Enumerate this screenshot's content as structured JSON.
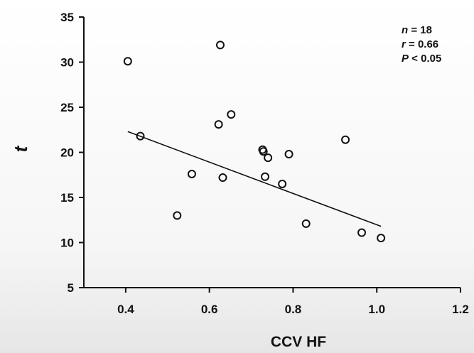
{
  "chart_data": {
    "type": "scatter",
    "xlabel": "CCV HF",
    "ylabel": "t",
    "xlim": [
      0.3,
      1.2
    ],
    "ylim": [
      5,
      35
    ],
    "xticks": [
      0.4,
      0.6,
      0.8,
      1.0,
      1.2
    ],
    "xtick_labels": [
      "0.4",
      "0.6",
      "0.8",
      "1.0",
      "1.2"
    ],
    "yticks": [
      5,
      10,
      15,
      20,
      25,
      30,
      35
    ],
    "ytick_labels": [
      "5",
      "10",
      "15",
      "20",
      "25",
      "30",
      "35"
    ],
    "grid": false,
    "points": [
      {
        "x": 0.405,
        "y": 30.1
      },
      {
        "x": 0.435,
        "y": 21.8
      },
      {
        "x": 0.523,
        "y": 13.0
      },
      {
        "x": 0.558,
        "y": 17.6
      },
      {
        "x": 0.622,
        "y": 23.1
      },
      {
        "x": 0.626,
        "y": 31.9
      },
      {
        "x": 0.632,
        "y": 17.2
      },
      {
        "x": 0.652,
        "y": 24.2
      },
      {
        "x": 0.727,
        "y": 20.3
      },
      {
        "x": 0.729,
        "y": 20.1
      },
      {
        "x": 0.733,
        "y": 17.3
      },
      {
        "x": 0.74,
        "y": 19.4
      },
      {
        "x": 0.774,
        "y": 16.5
      },
      {
        "x": 0.79,
        "y": 19.8
      },
      {
        "x": 0.831,
        "y": 12.1
      },
      {
        "x": 0.925,
        "y": 21.4
      },
      {
        "x": 0.964,
        "y": 11.1
      },
      {
        "x": 1.01,
        "y": 10.5
      }
    ],
    "trendline": {
      "x": [
        0.405,
        1.01
      ],
      "y": [
        22.3,
        11.8
      ]
    },
    "annotations": [
      {
        "label": "n",
        "value": " = 18"
      },
      {
        "label": "r",
        "value": " = 0.66"
      },
      {
        "label": "P",
        "value": " < 0.05"
      }
    ]
  }
}
